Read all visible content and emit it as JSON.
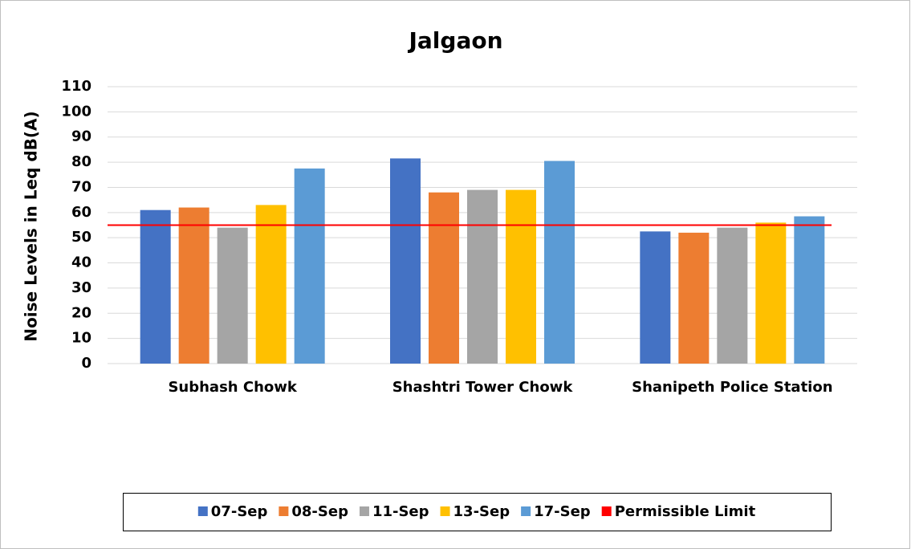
{
  "chart_data": {
    "type": "bar",
    "title": "Jalgaon",
    "y_label": "Noise Levels in Leq dB(A)",
    "categories": [
      "Subhash Chowk",
      "Shashtri Tower Chowk",
      "Shanipeth Police Station"
    ],
    "series": [
      {
        "name": "07-Sep",
        "color": "#4472c4",
        "values": [
          61,
          81.5,
          52.5
        ]
      },
      {
        "name": "08-Sep",
        "color": "#ed7d31",
        "values": [
          62,
          68,
          52
        ]
      },
      {
        "name": "11-Sep",
        "color": "#a5a5a5",
        "values": [
          54,
          69,
          54
        ]
      },
      {
        "name": "13-Sep",
        "color": "#ffc000",
        "values": [
          63,
          69,
          56
        ]
      },
      {
        "name": "17-Sep",
        "color": "#5b9bd5",
        "values": [
          77.5,
          80.5,
          58.5
        ]
      },
      {
        "name": "Permissible Limit",
        "color": "#ff0000",
        "type": "line",
        "values": [
          55,
          55,
          55
        ]
      }
    ],
    "ylim": [
      0,
      110
    ],
    "yticks": [
      0,
      10,
      20,
      30,
      40,
      50,
      60,
      70,
      80,
      90,
      100,
      110
    ],
    "grid": true
  }
}
